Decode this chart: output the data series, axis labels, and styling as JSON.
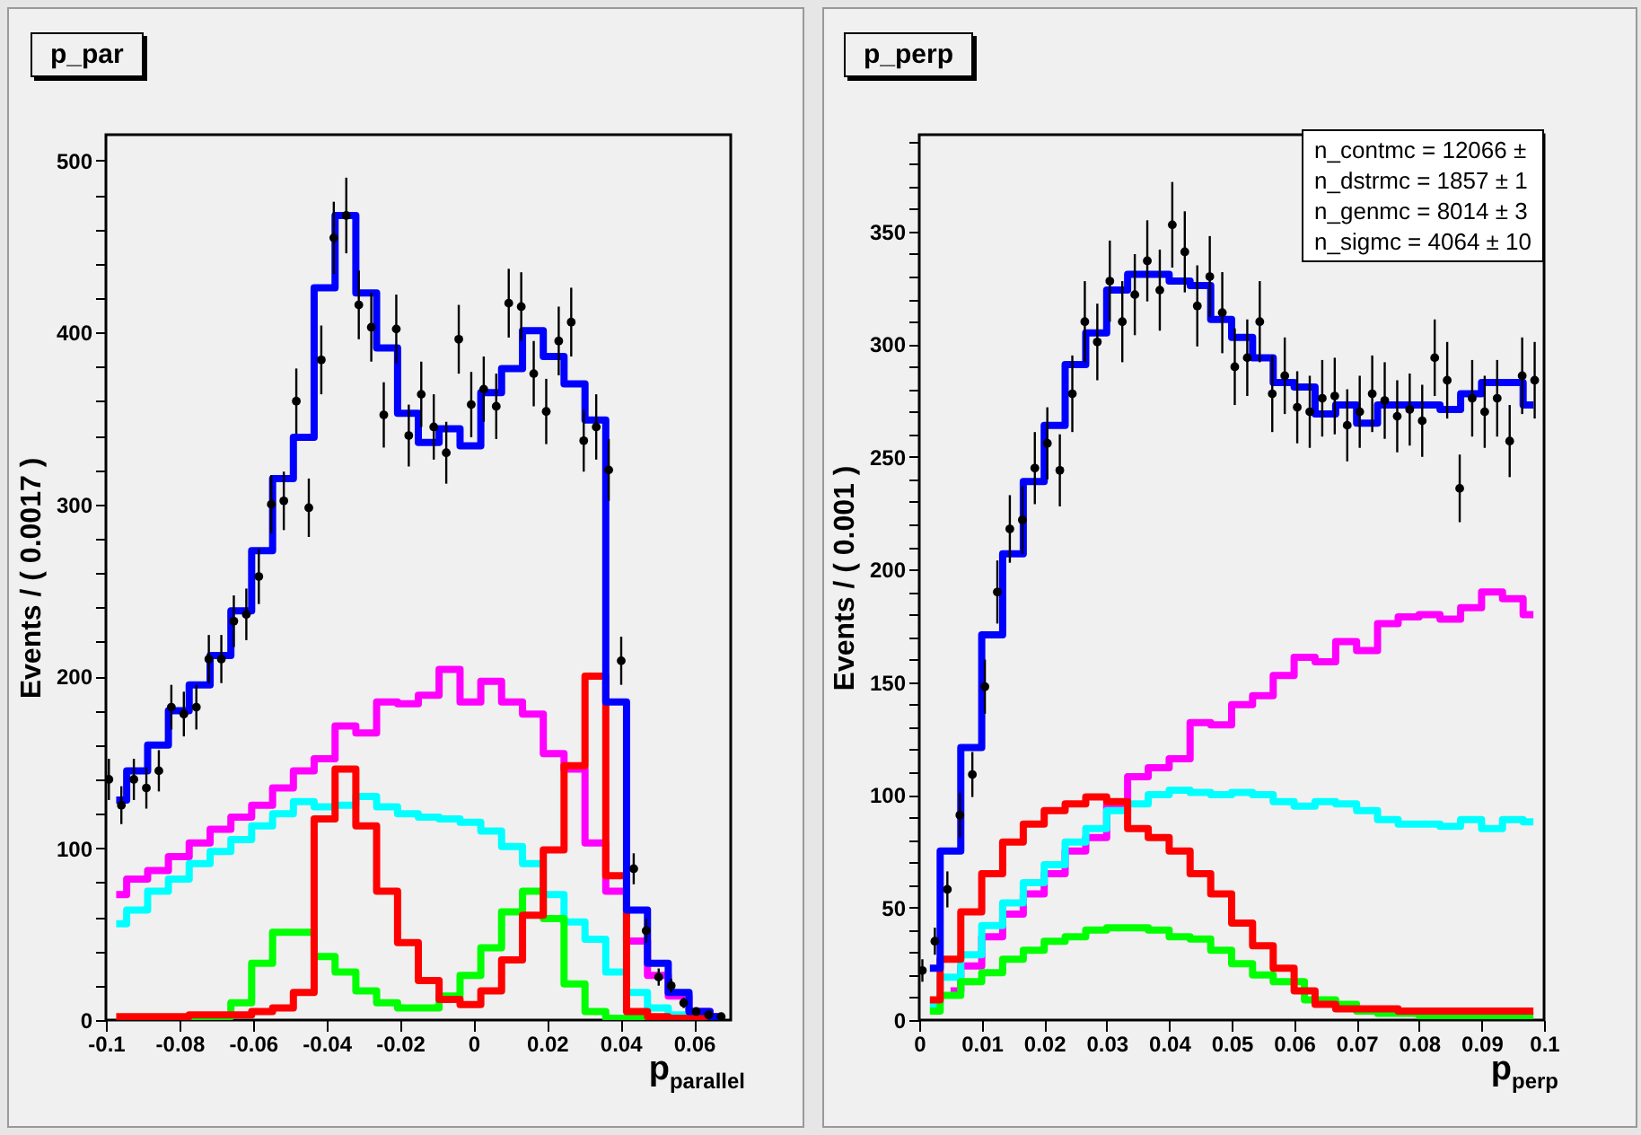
{
  "chart_data": [
    {
      "type": "step",
      "title": "p_par",
      "xlabel": "p$_{parallel}$",
      "ylabel": "Events / ( 0.0017 )",
      "xlim": [
        -0.1,
        0.07
      ],
      "ylim": [
        0,
        515
      ],
      "xticks": [
        -0.1,
        -0.08,
        -0.06,
        -0.04,
        -0.02,
        0,
        0.02,
        0.04,
        0.06
      ],
      "yticks": [
        0,
        {
          "value": 20,
          "label": null
        },
        {
          "value": 40,
          "label": null
        },
        {
          "value": 60,
          "label": null
        },
        {
          "value": 80,
          "label": null
        },
        100,
        {
          "value": 120,
          "label": null
        },
        {
          "value": 140,
          "label": null
        },
        {
          "value": 160,
          "label": null
        },
        {
          "value": 180,
          "label": null
        },
        200,
        {
          "value": 220,
          "label": null
        },
        {
          "value": 240,
          "label": null
        },
        {
          "value": 260,
          "label": null
        },
        {
          "value": 280,
          "label": null
        },
        300,
        {
          "value": 320,
          "label": null
        },
        {
          "value": 340,
          "label": null
        },
        {
          "value": 360,
          "label": null
        },
        {
          "value": 380,
          "label": null
        },
        400,
        {
          "value": 420,
          "label": null
        },
        {
          "value": 440,
          "label": null
        },
        {
          "value": 460,
          "label": null
        },
        {
          "value": 480,
          "label": null
        },
        500
      ],
      "x": [
        -0.0972,
        -0.0915,
        -0.0858,
        -0.0802,
        -0.0745,
        -0.0688,
        -0.0632,
        -0.0575,
        -0.0518,
        -0.0462,
        -0.0405,
        -0.0348,
        -0.0292,
        -0.0235,
        -0.0178,
        -0.0122,
        -0.0065,
        -0.0008,
        0.0048,
        0.0105,
        0.0162,
        0.0218,
        0.0275,
        0.0332,
        0.0388,
        0.0445,
        0.0502,
        0.0558,
        0.0615,
        0.0672
      ],
      "series": [
        {
          "color": "#ff00ff",
          "values": [
            73,
            82,
            87,
            95,
            103,
            111,
            118,
            125,
            135,
            145,
            152,
            171,
            167,
            185,
            184,
            189,
            204,
            185,
            197,
            185,
            178,
            155,
            146,
            103,
            75,
            46,
            26,
            14,
            5,
            2
          ]
        },
        {
          "color": "#00ffff",
          "values": [
            56,
            64,
            75,
            82,
            91,
            98,
            105,
            113,
            120,
            127,
            124,
            125,
            130,
            124,
            120,
            118,
            117,
            115,
            110,
            101,
            91,
            73,
            57,
            47,
            28,
            16,
            7,
            3,
            1,
            1
          ]
        },
        {
          "color": "#00ff00",
          "values": [
            null,
            null,
            1,
            1,
            1,
            2,
            10,
            33,
            51,
            51,
            37,
            28,
            17,
            10,
            7,
            7,
            14,
            26,
            42,
            63,
            75,
            59,
            21,
            5,
            1,
            1,
            1,
            1,
            null,
            null
          ]
        },
        {
          "color": "#ff0000",
          "values": [
            2,
            2,
            2,
            2,
            3,
            3,
            3,
            5,
            7,
            16,
            117,
            146,
            113,
            75,
            45,
            23,
            12,
            9,
            17,
            35,
            61,
            99,
            148,
            200,
            84,
            5,
            2,
            1,
            1,
            1
          ]
        },
        {
          "color": "#0000ff",
          "values": [
            128,
            145,
            160,
            180,
            195,
            212,
            238,
            273,
            315,
            339,
            426,
            468,
            423,
            391,
            353,
            336,
            344,
            334,
            365,
            379,
            401,
            386,
            370,
            349,
            185,
            64,
            33,
            16,
            5,
            2
          ]
        },
        {
          "type": "scatter",
          "marker": "circle",
          "color": "#000000",
          "x": [
            -0.0992,
            -0.0958,
            -0.0924,
            -0.089,
            -0.0856,
            -0.0822,
            -0.0788,
            -0.0754,
            -0.072,
            -0.0686,
            -0.0652,
            -0.0618,
            -0.0584,
            -0.055,
            -0.0516,
            -0.0482,
            -0.0448,
            -0.0414,
            -0.038,
            -0.0346,
            -0.0312,
            -0.0278,
            -0.0244,
            -0.021,
            -0.0176,
            -0.0142,
            -0.0108,
            -0.0074,
            -0.004,
            -0.0006,
            0.0028,
            0.0062,
            0.0096,
            0.013,
            0.0164,
            0.0198,
            0.0232,
            0.0266,
            0.03,
            0.0334,
            0.0368,
            0.0402,
            0.0436,
            0.047,
            0.0504,
            0.0538,
            0.0572,
            0.0606,
            0.064,
            0.0674
          ],
          "values": [
            140,
            125,
            140,
            135,
            145,
            182,
            178,
            182,
            210,
            210,
            232,
            236,
            258,
            300,
            302,
            360,
            298,
            384,
            455,
            468,
            416,
            403,
            352,
            402,
            340,
            364,
            345,
            330,
            396,
            358,
            367,
            357,
            417,
            415,
            376,
            354,
            395,
            406,
            337,
            345,
            320,
            209,
            88,
            52,
            25,
            20,
            10,
            5,
            3,
            2
          ],
          "errors": [
            12,
            11,
            12,
            12,
            12,
            13,
            13,
            13,
            14,
            14,
            15,
            15,
            16,
            17,
            17,
            19,
            17,
            20,
            21,
            22,
            20,
            20,
            19,
            20,
            18,
            19,
            19,
            18,
            20,
            19,
            19,
            19,
            20,
            20,
            19,
            19,
            20,
            20,
            18,
            19,
            18,
            14,
            9,
            7,
            5,
            4,
            3,
            2,
            2,
            null
          ]
        }
      ]
    },
    {
      "type": "step",
      "title": "p_perp",
      "xlabel": "p$_{perp}$",
      "ylabel": "Events / ( 0.001 )",
      "xlim": [
        0,
        0.1
      ],
      "ylim": [
        0,
        393
      ],
      "annotations": [
        "n_contmc =  12066 ±",
        "n_dstrmc =  1857 ± 1",
        "n_genmc =  8014 ± 3",
        "n_sigmc =  4064 ± 10"
      ],
      "xticks": [
        0,
        0.01,
        0.02,
        0.03,
        0.04,
        0.05,
        0.06,
        0.07,
        0.08,
        0.09,
        0.1
      ],
      "yticks": [
        0,
        {
          "value": 10,
          "label": null
        },
        {
          "value": 20,
          "label": null
        },
        {
          "value": 30,
          "label": null
        },
        {
          "value": 40,
          "label": null
        },
        50,
        {
          "value": 60,
          "label": null
        },
        {
          "value": 70,
          "label": null
        },
        {
          "value": 80,
          "label": null
        },
        {
          "value": 90,
          "label": null
        },
        100,
        {
          "value": 110,
          "label": null
        },
        {
          "value": 120,
          "label": null
        },
        {
          "value": 130,
          "label": null
        },
        {
          "value": 140,
          "label": null
        },
        150,
        {
          "value": 160,
          "label": null
        },
        {
          "value": 170,
          "label": null
        },
        {
          "value": 180,
          "label": null
        },
        {
          "value": 190,
          "label": null
        },
        200,
        {
          "value": 210,
          "label": null
        },
        {
          "value": 220,
          "label": null
        },
        {
          "value": 230,
          "label": null
        },
        {
          "value": 240,
          "label": null
        },
        250,
        {
          "value": 260,
          "label": null
        },
        {
          "value": 270,
          "label": null
        },
        {
          "value": 280,
          "label": null
        },
        {
          "value": 290,
          "label": null
        },
        300,
        {
          "value": 310,
          "label": null
        },
        {
          "value": 320,
          "label": null
        },
        {
          "value": 330,
          "label": null
        },
        {
          "value": 340,
          "label": null
        },
        350,
        {
          "value": 360,
          "label": null
        },
        {
          "value": 370,
          "label": null
        },
        {
          "value": 380,
          "label": null
        },
        {
          "value": 390,
          "label": null
        }
      ],
      "x": [
        0.0017,
        0.005,
        0.0083,
        0.0117,
        0.015,
        0.0183,
        0.0217,
        0.025,
        0.0283,
        0.0317,
        0.035,
        0.0383,
        0.0417,
        0.045,
        0.0483,
        0.0517,
        0.055,
        0.0583,
        0.0617,
        0.065,
        0.0683,
        0.0717,
        0.075,
        0.0783,
        0.0817,
        0.085,
        0.0883,
        0.0917,
        0.095,
        0.0983
      ],
      "series": [
        {
          "color": "#ff00ff",
          "values": [
            null,
            13,
            24,
            37,
            47,
            56,
            65,
            75,
            81,
            96,
            108,
            112,
            116,
            132,
            131,
            140,
            144,
            153,
            161,
            159,
            168,
            164,
            176,
            179,
            180,
            178,
            183,
            190,
            187,
            180
          ]
        },
        {
          "color": "#00ffff",
          "values": [
            7,
            19,
            29,
            42,
            52,
            61,
            69,
            79,
            85,
            93,
            96,
            100,
            102,
            101,
            100,
            101,
            100,
            97,
            95,
            97,
            96,
            93,
            89,
            87,
            87,
            86,
            89,
            85,
            89,
            88
          ]
        },
        {
          "color": "#00ff00",
          "values": [
            4,
            11,
            17,
            21,
            27,
            31,
            35,
            37,
            40,
            41,
            41,
            40,
            37,
            36,
            31,
            25,
            20,
            17,
            null,
            9,
            7,
            4,
            3,
            3,
            2,
            2,
            2,
            2,
            2,
            2
          ]
        },
        {
          "color": "#ff0000",
          "values": [
            9,
            27,
            48,
            65,
            79,
            87,
            93,
            96,
            99,
            97,
            85,
            81,
            75,
            65,
            56,
            43,
            33,
            23,
            13,
            7,
            5,
            5,
            5,
            4,
            4,
            4,
            4,
            4,
            4,
            4
          ]
        },
        {
          "color": "#0000ff",
          "values": [
            23,
            75,
            121,
            171,
            207,
            239,
            264,
            291,
            305,
            324,
            331,
            331,
            328,
            326,
            311,
            303,
            294,
            283,
            281,
            269,
            273,
            265,
            273,
            273,
            273,
            271,
            278,
            283,
            283,
            273
          ]
        },
        {
          "type": "scatter",
          "marker": "circle",
          "color": "#000000",
          "x": [
            0.0005,
            0.0025,
            0.0045,
            0.0065,
            0.0085,
            0.0105,
            0.0125,
            0.0145,
            0.0165,
            0.0185,
            0.0205,
            0.0225,
            0.0245,
            0.0265,
            0.0285,
            0.0305,
            0.0325,
            0.0345,
            0.0365,
            0.0385,
            0.0405,
            0.0425,
            0.0445,
            0.0465,
            0.0485,
            0.0505,
            0.0525,
            0.0545,
            0.0565,
            0.0585,
            0.0605,
            0.0625,
            0.0645,
            0.0665,
            0.0685,
            0.0705,
            0.0725,
            0.0745,
            0.0765,
            0.0785,
            0.0805,
            0.0825,
            0.0845,
            0.0865,
            0.0885,
            0.0905,
            0.0925,
            0.0945,
            0.0965,
            0.0985
          ],
          "values": [
            22,
            35,
            58,
            91,
            109,
            148,
            190,
            218,
            222,
            245,
            256,
            244,
            278,
            310,
            301,
            328,
            310,
            322,
            337,
            324,
            353,
            341,
            317,
            330,
            314,
            290,
            294,
            310,
            278,
            286,
            272,
            270,
            276,
            277,
            264,
            270,
            278,
            275,
            268,
            271,
            266,
            294,
            284,
            236,
            276,
            270,
            276,
            257,
            286,
            284
          ],
          "errors": [
            5,
            6,
            8,
            10,
            10,
            12,
            14,
            15,
            15,
            16,
            16,
            16,
            17,
            18,
            17,
            18,
            18,
            18,
            18,
            18,
            19,
            18,
            18,
            18,
            18,
            17,
            17,
            18,
            17,
            17,
            16,
            16,
            17,
            17,
            16,
            16,
            17,
            17,
            16,
            16,
            16,
            17,
            17,
            15,
            17,
            16,
            17,
            16,
            17,
            17
          ]
        }
      ]
    }
  ]
}
